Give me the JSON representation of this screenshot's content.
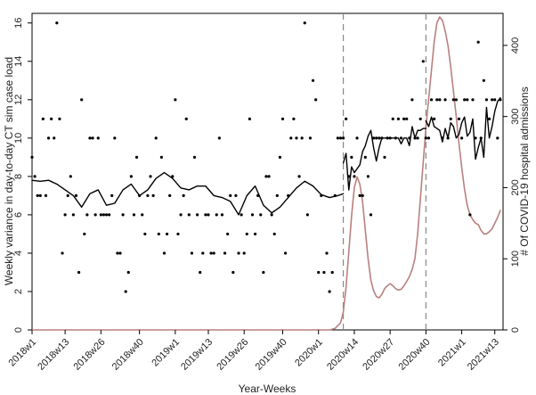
{
  "chart_data": {
    "type": "scatter",
    "xlabel": "Year-Weeks",
    "ylabel_left": "Weekly variance in day-to-day CT sim case load",
    "ylabel_right": "# Of COVID-19 hospital admissions",
    "x_ticks": [
      "2018w1",
      "2018w13",
      "2018w26",
      "2018w40",
      "2019w1",
      "2019w13",
      "2019w26",
      "2019w40",
      "2020w1",
      "2020w14",
      "2020w27",
      "2020w40",
      "2021w1",
      "2021w13"
    ],
    "y_left_ticks": [
      "0",
      "2",
      "4",
      "6",
      "8",
      "10",
      "12",
      "14",
      "16"
    ],
    "y_right_ticks": [
      "0",
      "100",
      "200",
      "300",
      "400"
    ],
    "ylim_left": [
      0,
      16.5
    ],
    "ylim_right": [
      0,
      445
    ],
    "x_range_weeks": [
      0,
      171
    ],
    "x_tick_positions_weeks": [
      0,
      12,
      25,
      39,
      52,
      64,
      77,
      91,
      104,
      117,
      130,
      143,
      156,
      168
    ],
    "vlines_weeks": [
      113,
      143
    ],
    "colors": {
      "points": "#000000",
      "smooth": "#000000",
      "admissions": "#b9807f",
      "vline": "#888888"
    },
    "series": [
      {
        "kind": "points",
        "x": [
          0,
          1,
          2,
          3,
          4,
          5,
          6,
          7,
          8,
          9,
          10,
          11,
          12,
          13,
          14,
          15,
          16,
          17,
          18,
          19,
          20,
          21,
          22,
          23,
          24,
          25,
          26,
          27,
          28,
          29,
          30,
          31,
          32,
          33,
          34,
          35,
          36,
          37,
          38,
          39,
          40,
          41,
          42,
          43,
          44,
          45,
          46,
          47,
          48,
          49,
          50,
          51,
          52,
          53,
          54,
          55,
          56,
          57,
          58,
          59,
          60,
          61,
          62,
          63,
          64,
          65,
          66,
          67,
          68,
          69,
          70,
          71,
          72,
          73,
          74,
          75,
          76,
          77,
          78,
          79,
          80,
          81,
          82,
          83,
          84,
          85,
          86,
          87,
          88,
          89,
          90,
          91,
          92,
          93,
          94,
          95,
          96,
          97,
          98,
          99,
          100,
          101,
          102,
          103,
          104,
          105,
          106,
          107,
          108,
          109,
          110,
          111,
          112,
          113,
          114,
          115,
          116,
          117,
          118,
          119,
          120,
          121,
          122,
          123,
          124,
          125,
          126,
          127,
          128,
          129,
          130,
          131,
          132,
          133,
          134,
          135,
          136,
          137,
          138,
          139,
          140,
          141,
          142,
          143,
          144,
          145,
          146,
          147,
          148,
          149,
          150,
          151,
          152,
          153,
          154,
          155,
          156,
          157,
          158,
          159,
          160,
          161,
          162,
          163,
          164,
          165,
          166,
          167,
          168,
          169,
          170
        ],
        "y": [
          9,
          8,
          7,
          7,
          11,
          7,
          10,
          11,
          10,
          16,
          11,
          4,
          6,
          7,
          8,
          6,
          7,
          3,
          12,
          5,
          6,
          10,
          10,
          6,
          10,
          6,
          6,
          6,
          6,
          7,
          10,
          4,
          4,
          6,
          2,
          3,
          8,
          6,
          9,
          7,
          6,
          5,
          7,
          8,
          7,
          10,
          5,
          9,
          4,
          5,
          7,
          8,
          12,
          5,
          6,
          7,
          11,
          6,
          4,
          9,
          6,
          3,
          4,
          6,
          6,
          4,
          4,
          6,
          10,
          6,
          4,
          5,
          7,
          3,
          7,
          4,
          6,
          4,
          5,
          11,
          6,
          5,
          7,
          6,
          3,
          8,
          8,
          6,
          5,
          7,
          9,
          11,
          4,
          7,
          10,
          11,
          10,
          8,
          10,
          16,
          6,
          10,
          13,
          12,
          3,
          7,
          3,
          4,
          2,
          3,
          7,
          10,
          10,
          10,
          11,
          8,
          9,
          8,
          10,
          7,
          7,
          9,
          8,
          6,
          10,
          10,
          10,
          10,
          9,
          10,
          10,
          11,
          10,
          11,
          10,
          11,
          11,
          10,
          12,
          10,
          10,
          11,
          14,
          10,
          10,
          12,
          11,
          12,
          12,
          10,
          12,
          10,
          11,
          12,
          12,
          11,
          10,
          12,
          12,
          6,
          12,
          10,
          15,
          10,
          13,
          12,
          11,
          12,
          12,
          10,
          12
        ]
      },
      {
        "kind": "smooth",
        "x": [
          0,
          3,
          6,
          9,
          12,
          15,
          18,
          21,
          24,
          27,
          30,
          33,
          36,
          39,
          42,
          45,
          48,
          51,
          54,
          57,
          60,
          63,
          66,
          69,
          72,
          75,
          78,
          81,
          84,
          87,
          90,
          93,
          96,
          99,
          102,
          105,
          108,
          111,
          113
        ],
        "y": [
          7.8,
          7.75,
          7.8,
          7.6,
          7.3,
          7.0,
          6.4,
          7.1,
          7.3,
          6.5,
          6.6,
          7.3,
          7.6,
          7.0,
          7.3,
          7.9,
          8.2,
          7.9,
          7.4,
          7.3,
          7.5,
          7.5,
          7.0,
          6.9,
          6.7,
          6.0,
          7.0,
          7.5,
          6.5,
          6.1,
          6.4,
          6.9,
          7.4,
          7.75,
          7.5,
          7.05,
          6.9,
          7.0,
          7.1
        ]
      },
      {
        "kind": "line",
        "x": [
          113,
          114,
          115,
          116,
          117,
          118,
          119,
          120,
          121,
          122,
          123,
          124,
          125,
          126,
          127,
          128,
          129,
          130,
          131,
          132,
          133,
          134,
          135,
          136,
          137,
          138,
          139,
          140,
          141,
          142,
          143
        ],
        "y": [
          8.7,
          9.2,
          7.3,
          8.5,
          8.2,
          8.4,
          8.6,
          9.3,
          9.6,
          10.1,
          10.4,
          9.5,
          8.8,
          9.5,
          10.0,
          10.0,
          10.0,
          10.0,
          10.0,
          10.0,
          10.0,
          9.7,
          10.0,
          10.0,
          9.6,
          10.6,
          10.0,
          10.4,
          10.4,
          10.5,
          10.5
        ]
      },
      {
        "kind": "line",
        "x": [
          143,
          144,
          145,
          146,
          147,
          148,
          149,
          150,
          151,
          152,
          153,
          154,
          155,
          156,
          157,
          158,
          159,
          160,
          161,
          162,
          163,
          164,
          165,
          166,
          167,
          168,
          169,
          170
        ],
        "y": [
          10.9,
          10.6,
          11.1,
          10.6,
          10.5,
          10.4,
          9.8,
          10.5,
          10.0,
          10.8,
          10.6,
          10.0,
          10.2,
          10.8,
          11.1,
          10.1,
          10.3,
          11.0,
          8.9,
          9.5,
          10.0,
          9.0,
          11.6,
          10.0,
          10.6,
          11.4,
          11.9,
          12.1
        ]
      },
      {
        "kind": "admissions",
        "name": "COVID-19 hospital admissions",
        "x": [
          0,
          100,
          108,
          110,
          112,
          113,
          114,
          115,
          116,
          117,
          118,
          119,
          120,
          121,
          122,
          123,
          124,
          125,
          126,
          127,
          128,
          129,
          130,
          131,
          132,
          133,
          134,
          135,
          136,
          137,
          138,
          139,
          140,
          141,
          142,
          143,
          144,
          145,
          146,
          147,
          148,
          149,
          150,
          151,
          152,
          153,
          154,
          155,
          156,
          157,
          158,
          159,
          160,
          161,
          162,
          163,
          164,
          165,
          166,
          167,
          168,
          169,
          170
        ],
        "y": [
          0,
          0,
          0,
          2,
          10,
          25,
          60,
          110,
          160,
          200,
          215,
          205,
          180,
          140,
          100,
          70,
          55,
          47,
          45,
          50,
          58,
          62,
          65,
          62,
          58,
          56,
          57,
          62,
          68,
          75,
          85,
          100,
          135,
          185,
          235,
          285,
          325,
          365,
          405,
          432,
          440,
          435,
          420,
          400,
          370,
          335,
          300,
          262,
          228,
          198,
          175,
          162,
          155,
          150,
          148,
          140,
          135,
          135,
          138,
          142,
          150,
          158,
          168
        ]
      }
    ]
  }
}
